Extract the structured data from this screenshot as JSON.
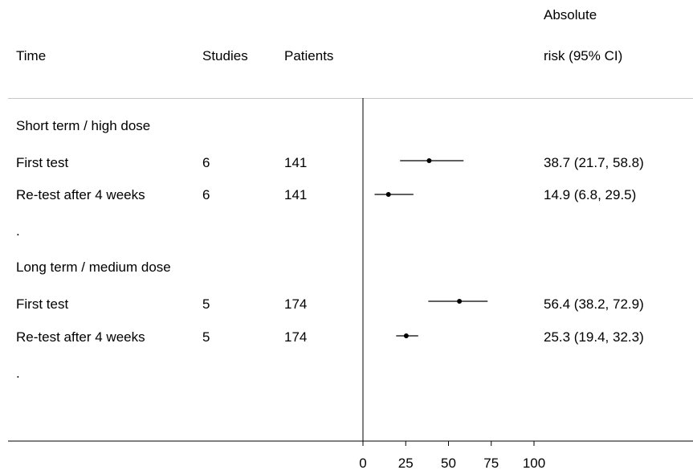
{
  "headers": {
    "time": "Time",
    "studies": "Studies",
    "patients": "Patients",
    "risk_line1": "Absolute",
    "risk_line2": "risk (95% CI)"
  },
  "rows": [
    {
      "kind": "group",
      "label": "Short term / high dose"
    },
    {
      "kind": "study",
      "label": "First test",
      "studies": "6",
      "patients": "141",
      "estimate": "38.7 (21.7, 58.8)"
    },
    {
      "kind": "study",
      "label": "Re-test after 4 weeks",
      "studies": "6",
      "patients": "141",
      "estimate": "14.9 (6.8, 29.5)"
    },
    {
      "kind": "spacer",
      "label": "."
    },
    {
      "kind": "group",
      "label": "Long term / medium dose"
    },
    {
      "kind": "study",
      "label": "First test",
      "studies": "5",
      "patients": "174",
      "estimate": "56.4 (38.2, 72.9)"
    },
    {
      "kind": "study",
      "label": "Re-test after 4 weeks",
      "studies": "5",
      "patients": "174",
      "estimate": "25.3 (19.4, 32.3)"
    },
    {
      "kind": "spacer",
      "label": "."
    }
  ],
  "chart_data": {
    "type": "forest",
    "xlim": [
      0,
      100
    ],
    "xticks": [
      "0",
      "25",
      "50",
      "75",
      "100"
    ],
    "reference_line": 0,
    "points": [
      {
        "label": "Short term / high dose — First test",
        "estimate": 38.7,
        "lower": 21.7,
        "upper": 58.8
      },
      {
        "label": "Short term / high dose — Re-test after 4 weeks",
        "estimate": 14.9,
        "lower": 6.8,
        "upper": 29.5
      },
      {
        "label": "Long term / medium dose — First test",
        "estimate": 56.4,
        "lower": 38.2,
        "upper": 72.9
      },
      {
        "label": "Long term / medium dose — Re-test after 4 weeks",
        "estimate": 25.3,
        "lower": 19.4,
        "upper": 32.3
      }
    ]
  }
}
